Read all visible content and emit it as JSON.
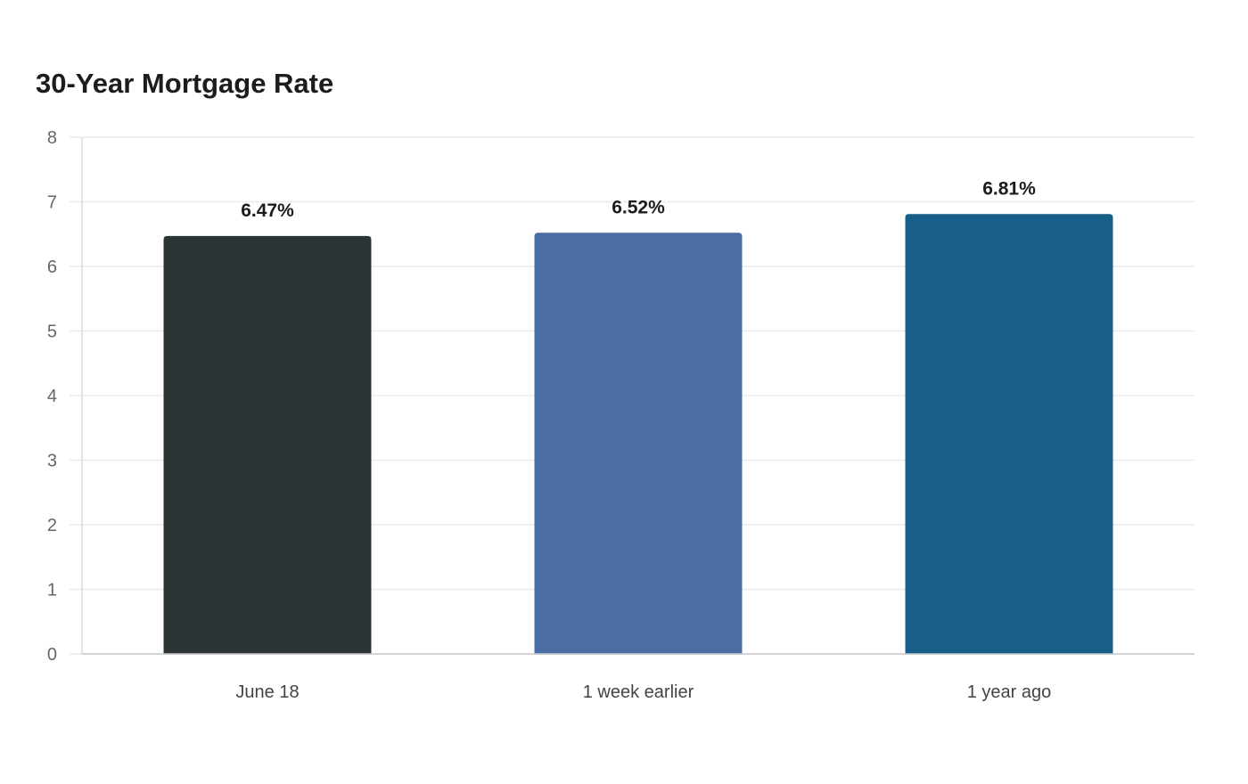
{
  "chart_data": {
    "type": "bar",
    "title": "30-Year Mortgage Rate",
    "xlabel": "",
    "ylabel": "",
    "categories": [
      "June 18",
      "1 week earlier",
      "1 year ago"
    ],
    "values": [
      6.47,
      6.52,
      6.81
    ],
    "data_labels": [
      "6.47%",
      "6.52%",
      "6.81%"
    ],
    "colors": [
      "#2d3436",
      "#4a6ea3",
      "#175f88"
    ],
    "ylim": [
      0,
      8
    ],
    "yticks": [
      "0",
      "1",
      "2",
      "3",
      "4",
      "5",
      "6",
      "7",
      "8"
    ],
    "grid": true,
    "legend": "none"
  }
}
